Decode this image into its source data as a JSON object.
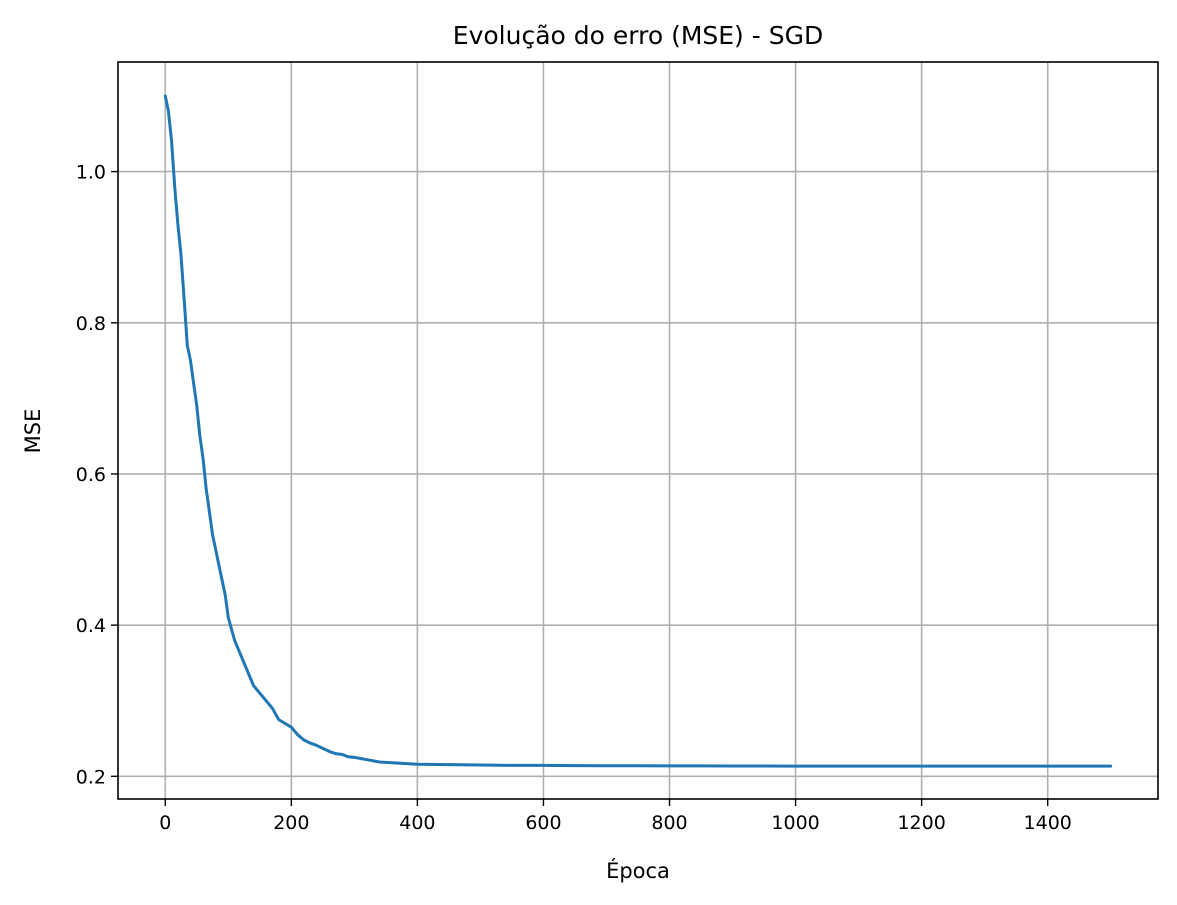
{
  "chart_data": {
    "type": "line",
    "title": "Evolução do erro (MSE) - SGD",
    "xlabel": "Época",
    "ylabel": "MSE",
    "xlim": [
      -75,
      1575
    ],
    "ylim": [
      0.17,
      1.145
    ],
    "xticks": [
      0,
      200,
      400,
      600,
      800,
      1000,
      1200,
      1400
    ],
    "xtick_labels": [
      "0",
      "200",
      "400",
      "600",
      "800",
      "1000",
      "1200",
      "1400"
    ],
    "yticks": [
      0.2,
      0.4,
      0.6,
      0.8,
      1.0
    ],
    "ytick_labels": [
      "0.2",
      "0.4",
      "0.6",
      "0.8",
      "1.0"
    ],
    "grid": true,
    "color": "#1f77b4",
    "series": [
      {
        "x": [
          0,
          5,
          10,
          15,
          20,
          25,
          30,
          35,
          40,
          45,
          50,
          55,
          60,
          65,
          70,
          75,
          80,
          85,
          90,
          95,
          100,
          110,
          120,
          130,
          140,
          150,
          160,
          170,
          180,
          190,
          200,
          210,
          220,
          230,
          240,
          250,
          260,
          270,
          280,
          290,
          300,
          320,
          340,
          360,
          380,
          400,
          450,
          500,
          550,
          600,
          650,
          700,
          750,
          800,
          850,
          900,
          950,
          1000,
          1050,
          1100,
          1150,
          1200,
          1250,
          1300,
          1350,
          1400,
          1450,
          1500
        ],
        "y": [
          1.1,
          1.08,
          1.04,
          0.98,
          0.93,
          0.89,
          0.83,
          0.77,
          0.75,
          0.72,
          0.69,
          0.65,
          0.62,
          0.58,
          0.55,
          0.52,
          0.5,
          0.48,
          0.46,
          0.44,
          0.41,
          0.38,
          0.36,
          0.34,
          0.32,
          0.31,
          0.3,
          0.29,
          0.275,
          0.27,
          0.265,
          0.255,
          0.248,
          0.244,
          0.241,
          0.237,
          0.233,
          0.23,
          0.229,
          0.226,
          0.225,
          0.222,
          0.219,
          0.218,
          0.217,
          0.216,
          0.2155,
          0.215,
          0.2145,
          0.2145,
          0.2142,
          0.214,
          0.214,
          0.2138,
          0.2138,
          0.2136,
          0.2136,
          0.2135,
          0.2135,
          0.2135,
          0.2135,
          0.2135,
          0.2135,
          0.2135,
          0.2135,
          0.2135,
          0.2135,
          0.2135
        ]
      }
    ]
  }
}
